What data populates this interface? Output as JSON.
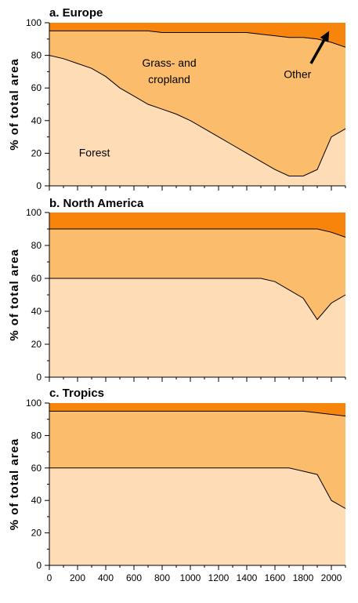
{
  "colors": {
    "forest": "#fddcb6",
    "grass_cropland": "#fbbd6b",
    "other": "#f7850c",
    "line": "#000000"
  },
  "chart_data": [
    {
      "type": "area",
      "stacked": true,
      "title": "a.   Europe",
      "ylabel": "% of total area",
      "xlim": [
        0,
        2100
      ],
      "ylim": [
        0,
        100
      ],
      "yticks": [
        0,
        20,
        40,
        60,
        80,
        100
      ],
      "xticks": [
        0,
        200,
        400,
        600,
        800,
        1000,
        1200,
        1400,
        1600,
        1800,
        2000
      ],
      "show_xtick_labels": false,
      "boundaries": {
        "forest_top": [
          [
            0,
            80
          ],
          [
            100,
            78
          ],
          [
            200,
            75
          ],
          [
            300,
            72
          ],
          [
            400,
            67
          ],
          [
            500,
            60
          ],
          [
            600,
            55
          ],
          [
            700,
            50
          ],
          [
            800,
            47
          ],
          [
            900,
            44
          ],
          [
            1000,
            40
          ],
          [
            1100,
            35
          ],
          [
            1200,
            30
          ],
          [
            1300,
            25
          ],
          [
            1400,
            20
          ],
          [
            1500,
            15
          ],
          [
            1600,
            10
          ],
          [
            1700,
            6
          ],
          [
            1800,
            6
          ],
          [
            1900,
            10
          ],
          [
            2000,
            30
          ],
          [
            2100,
            35
          ]
        ],
        "grass_top": [
          [
            0,
            95
          ],
          [
            100,
            95
          ],
          [
            200,
            95
          ],
          [
            300,
            95
          ],
          [
            400,
            95
          ],
          [
            500,
            95
          ],
          [
            600,
            95
          ],
          [
            700,
            95
          ],
          [
            800,
            94
          ],
          [
            900,
            94
          ],
          [
            1000,
            94
          ],
          [
            1100,
            94
          ],
          [
            1200,
            94
          ],
          [
            1300,
            94
          ],
          [
            1400,
            94
          ],
          [
            1500,
            93
          ],
          [
            1600,
            92
          ],
          [
            1700,
            91
          ],
          [
            1800,
            91
          ],
          [
            1900,
            90
          ],
          [
            2000,
            88
          ],
          [
            2100,
            85
          ]
        ]
      },
      "series": [
        {
          "name": "Forest"
        },
        {
          "name": "Grass- and cropland"
        },
        {
          "name": "Other"
        }
      ],
      "annotations": [
        {
          "text": "Forest",
          "x": 320,
          "y": 18
        },
        {
          "text": "Grass- and",
          "x": 850,
          "y": 73
        },
        {
          "text": "cropland",
          "x": 850,
          "y": 63
        },
        {
          "text": "Other",
          "x": 1760,
          "y": 66
        }
      ],
      "arrow": {
        "from": [
          1855,
          75
        ],
        "to": [
          1985,
          95
        ]
      }
    },
    {
      "type": "area",
      "stacked": true,
      "title": "b.   North America",
      "ylabel": "% of total area",
      "xlim": [
        0,
        2100
      ],
      "ylim": [
        0,
        100
      ],
      "yticks": [
        0,
        20,
        40,
        60,
        80,
        100
      ],
      "xticks": [
        0,
        200,
        400,
        600,
        800,
        1000,
        1200,
        1400,
        1600,
        1800,
        2000
      ],
      "show_xtick_labels": false,
      "boundaries": {
        "forest_top": [
          [
            0,
            60
          ],
          [
            1500,
            60
          ],
          [
            1600,
            58
          ],
          [
            1700,
            53
          ],
          [
            1800,
            48
          ],
          [
            1900,
            35
          ],
          [
            2000,
            45
          ],
          [
            2100,
            50
          ]
        ],
        "grass_top": [
          [
            0,
            90
          ],
          [
            1800,
            90
          ],
          [
            1900,
            90
          ],
          [
            2000,
            88
          ],
          [
            2100,
            85
          ]
        ]
      },
      "series": [
        {
          "name": "Forest"
        },
        {
          "name": "Grass- and cropland"
        },
        {
          "name": "Other"
        }
      ],
      "annotations": []
    },
    {
      "type": "area",
      "stacked": true,
      "title": "c.   Tropics",
      "ylabel": "% of total area",
      "xlim": [
        0,
        2100
      ],
      "ylim": [
        0,
        100
      ],
      "yticks": [
        0,
        20,
        40,
        60,
        80,
        100
      ],
      "xticks": [
        0,
        200,
        400,
        600,
        800,
        1000,
        1200,
        1400,
        1600,
        1800,
        2000
      ],
      "xtick_labels": [
        "0",
        "200",
        "400",
        "600",
        "800",
        "1000",
        "1200",
        "1400",
        "1600",
        "1800",
        "2000"
      ],
      "show_xtick_labels": true,
      "boundaries": {
        "forest_top": [
          [
            0,
            60
          ],
          [
            1700,
            60
          ],
          [
            1800,
            58
          ],
          [
            1900,
            56
          ],
          [
            2000,
            40
          ],
          [
            2100,
            35
          ]
        ],
        "grass_top": [
          [
            0,
            95
          ],
          [
            1800,
            95
          ],
          [
            1900,
            94
          ],
          [
            2000,
            93
          ],
          [
            2100,
            92
          ]
        ]
      },
      "series": [
        {
          "name": "Forest"
        },
        {
          "name": "Grass- and cropland"
        },
        {
          "name": "Other"
        }
      ],
      "annotations": []
    }
  ]
}
